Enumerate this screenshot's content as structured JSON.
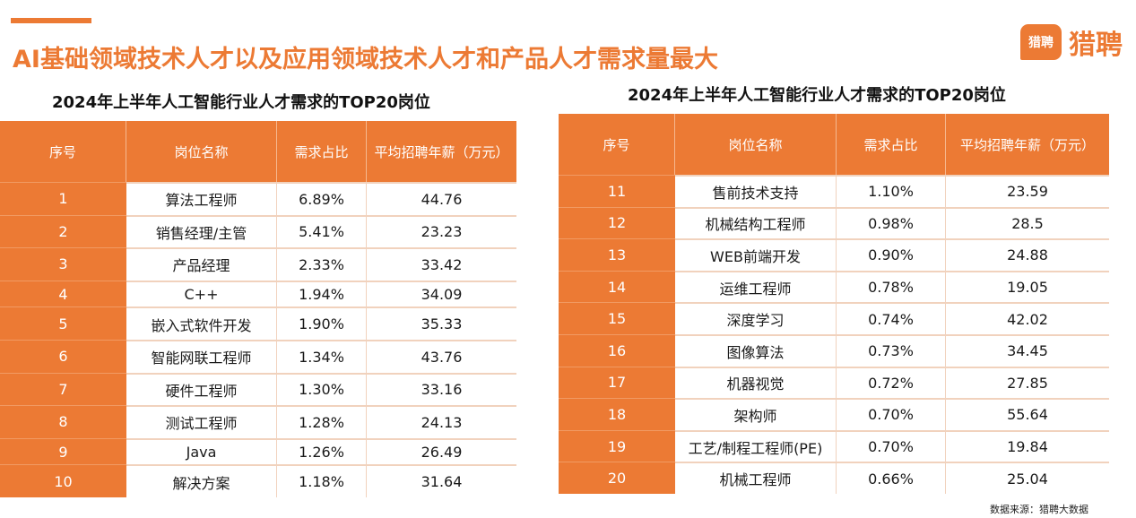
{
  "header": {
    "title": "AI基础领域技术人才以及应用领域技术人才和产品人才需求量最大",
    "logo_badge": "猎聘",
    "logo_text": "猎聘"
  },
  "table_left": {
    "title": "2024年上半年人工智能行业人才需求的TOP20岗位",
    "columns": [
      "序号",
      "岗位名称",
      "需求占比",
      "平均招聘年薪（万元）"
    ],
    "rows": [
      [
        "1",
        "算法工程师",
        "6.89%",
        "44.76"
      ],
      [
        "2",
        "销售经理/主管",
        "5.41%",
        "23.23"
      ],
      [
        "3",
        "产品经理",
        "2.33%",
        "33.42"
      ],
      [
        "4",
        "C++",
        "1.94%",
        "34.09"
      ],
      [
        "5",
        "嵌入式软件开发",
        "1.90%",
        "35.33"
      ],
      [
        "6",
        "智能网联工程师",
        "1.34%",
        "43.76"
      ],
      [
        "7",
        "硬件工程师",
        "1.30%",
        "33.16"
      ],
      [
        "8",
        "测试工程师",
        "1.28%",
        "24.13"
      ],
      [
        "9",
        "Java",
        "1.26%",
        "26.49"
      ],
      [
        "10",
        "解决方案",
        "1.18%",
        "31.64"
      ]
    ]
  },
  "table_right": {
    "title": "2024年上半年人工智能行业人才需求的TOP20岗位",
    "columns": [
      "序号",
      "岗位名称",
      "需求占比",
      "平均招聘年薪（万元）"
    ],
    "rows": [
      [
        "11",
        "售前技术支持",
        "1.10%",
        "23.59"
      ],
      [
        "12",
        "机械结构工程师",
        "0.98%",
        "28.5"
      ],
      [
        "13",
        "WEB前端开发",
        "0.90%",
        "24.88"
      ],
      [
        "14",
        "运维工程师",
        "0.78%",
        "19.05"
      ],
      [
        "15",
        "深度学习",
        "0.74%",
        "42.02"
      ],
      [
        "16",
        "图像算法",
        "0.73%",
        "34.45"
      ],
      [
        "17",
        "机器视觉",
        "0.72%",
        "27.85"
      ],
      [
        "18",
        "架构师",
        "0.70%",
        "55.64"
      ],
      [
        "19",
        "工艺/制程工程师(PE)",
        "0.70%",
        "19.84"
      ],
      [
        "20",
        "机械工程师",
        "0.66%",
        "25.04"
      ]
    ]
  },
  "footer": {
    "source": "数据来源：猎聘大数据"
  },
  "colors": {
    "accent": "#ec7a34",
    "row_border": "#f1d2bd"
  }
}
